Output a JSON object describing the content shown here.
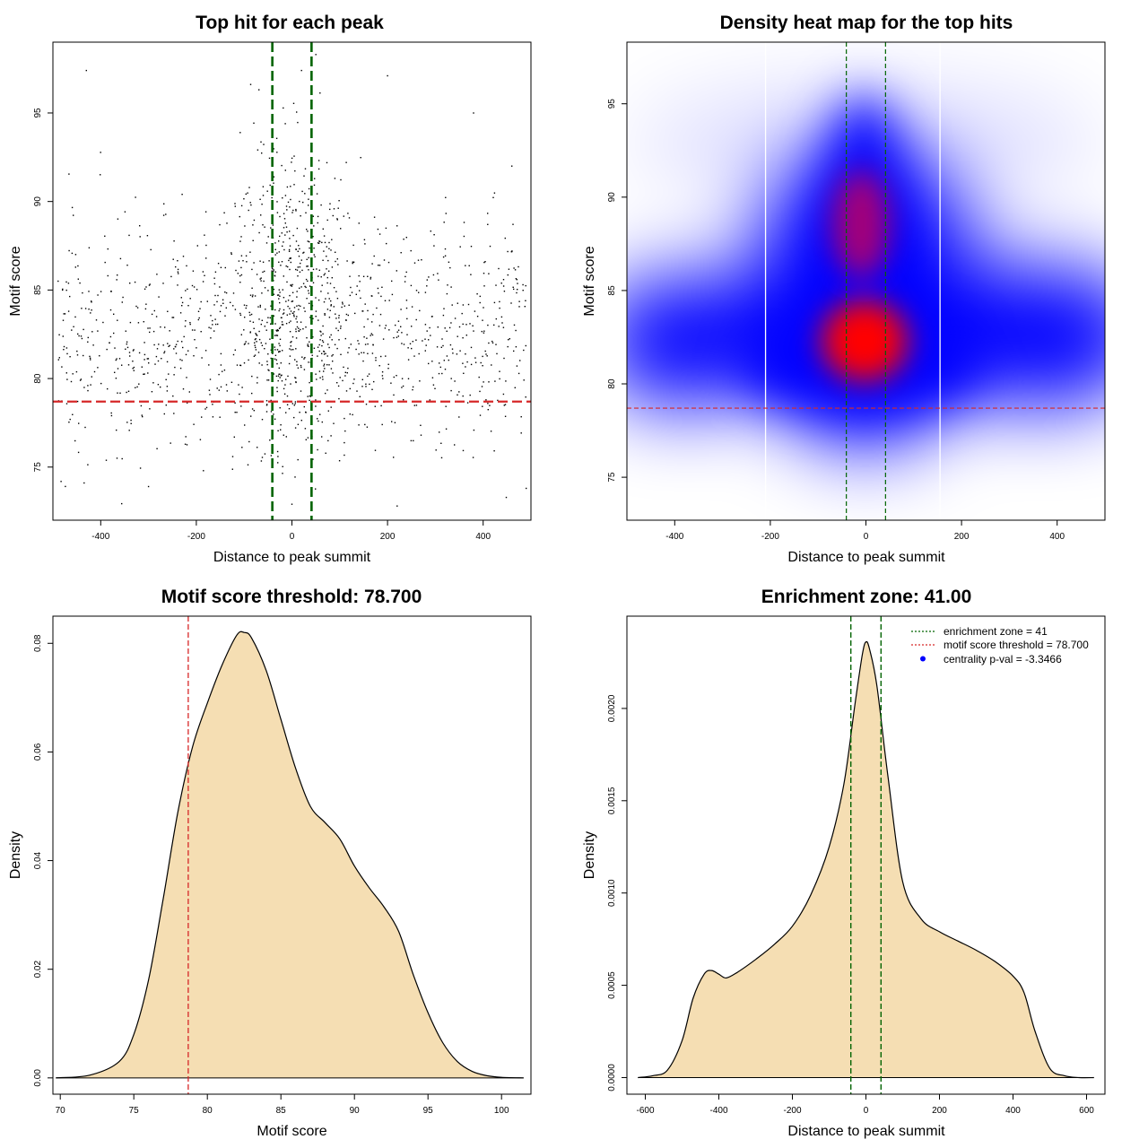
{
  "chart_data": [
    {
      "id": "scatter",
      "type": "scatter",
      "title": "Top hit for each peak",
      "xlabel": "Distance to peak summit",
      "ylabel": "Motif score",
      "xlim": [
        -500,
        500
      ],
      "ylim": [
        72,
        99
      ],
      "xticks": [
        -400,
        -200,
        0,
        200,
        400
      ],
      "yticks": [
        75,
        80,
        85,
        90,
        95
      ],
      "vlines": [
        -41,
        41
      ],
      "vline_color": "#006400",
      "hline": 78.7,
      "hline_color": "#d62728",
      "point_count": 1500,
      "point_color": "#000000",
      "points_sample": [
        [
          -430,
          97.4
        ],
        [
          -40,
          98.1
        ],
        [
          20,
          97.4
        ],
        [
          50,
          98.3
        ],
        [
          200,
          97.1
        ],
        [
          -470,
          81.4
        ],
        [
          0,
          72.9
        ],
        [
          220,
          72.8
        ],
        [
          490,
          73.8
        ],
        [
          -300,
          73.9
        ],
        [
          10,
          83.5
        ],
        [
          -20,
          90.2
        ],
        [
          380,
          95.0
        ],
        [
          460,
          92.0
        ]
      ]
    },
    {
      "id": "heatmap",
      "type": "heatmap",
      "title": "Density heat map for the top hits",
      "xlabel": "Distance to peak summit",
      "ylabel": "Motif score",
      "xlim": [
        -500,
        500
      ],
      "ylim": [
        72.7,
        98.3
      ],
      "xticks": [
        -400,
        -200,
        0,
        200,
        400
      ],
      "yticks": [
        75,
        80,
        85,
        90,
        95
      ],
      "vlines": [
        -41,
        41
      ],
      "vline_color": "#006400",
      "hline": 78.7,
      "hline_color": "#d62728",
      "white_vlines": [
        -210,
        155
      ],
      "colors": [
        "#ffffff",
        "#0000ff",
        "#ff0000"
      ],
      "hotspots": [
        {
          "x": 0,
          "y": 82.3,
          "level": "high"
        },
        {
          "x": -5,
          "y": 89.0,
          "level": "medium-high"
        },
        {
          "x": 0,
          "y": 94.0,
          "level": "medium"
        }
      ]
    },
    {
      "id": "score_density",
      "type": "area",
      "title": "Motif score threshold: 78.700",
      "xlabel": "Motif score",
      "ylabel": "Density",
      "xlim": [
        69.5,
        102
      ],
      "ylim": [
        -0.003,
        0.085
      ],
      "xticks": [
        70,
        75,
        80,
        85,
        90,
        95,
        100
      ],
      "ytick_labels": [
        "0.00",
        "0.02",
        "0.04",
        "0.06",
        "0.08"
      ],
      "yticks": [
        0,
        0.02,
        0.04,
        0.06,
        0.08
      ],
      "fill": "#f5deb3",
      "vline": 78.7,
      "vline_color": "#d62728",
      "x": [
        69.7,
        72,
        74,
        75,
        76,
        77,
        78,
        79,
        80,
        81,
        82,
        82.5,
        83,
        84,
        85,
        86,
        87,
        88,
        89,
        90,
        91,
        92,
        93,
        94,
        95,
        96,
        97,
        98,
        99,
        100,
        101.5
      ],
      "y": [
        0,
        0.0005,
        0.003,
        0.008,
        0.018,
        0.033,
        0.049,
        0.061,
        0.069,
        0.076,
        0.0815,
        0.082,
        0.081,
        0.075,
        0.066,
        0.057,
        0.05,
        0.047,
        0.044,
        0.039,
        0.035,
        0.0315,
        0.027,
        0.019,
        0.012,
        0.0065,
        0.003,
        0.0012,
        0.0004,
        0.0001,
        0
      ]
    },
    {
      "id": "distance_density",
      "type": "area",
      "title": "Enrichment zone: 41.00",
      "xlabel": "Distance to peak summit",
      "ylabel": "Density",
      "xlim": [
        -650,
        650
      ],
      "ylim": [
        -9e-05,
        0.0025
      ],
      "xticks": [
        -600,
        -400,
        -200,
        0,
        200,
        400,
        600
      ],
      "ytick_labels": [
        "0.0000",
        "0.0005",
        "0.0010",
        "0.0015",
        "0.0020"
      ],
      "yticks": [
        0,
        0.0005,
        0.001,
        0.0015,
        0.002
      ],
      "fill": "#f5deb3",
      "vlines": [
        -41,
        41
      ],
      "vline_color": "#006400",
      "x": [
        -620,
        -580,
        -540,
        -500,
        -470,
        -440,
        -420,
        -400,
        -380,
        -350,
        -300,
        -250,
        -200,
        -150,
        -100,
        -60,
        -30,
        -10,
        0,
        10,
        30,
        60,
        100,
        150,
        200,
        250,
        300,
        350,
        400,
        430,
        460,
        500,
        540,
        580,
        620
      ],
      "y": [
        0,
        1e-05,
        4e-05,
        0.0002,
        0.00043,
        0.00056,
        0.00058,
        0.00056,
        0.00054,
        0.00057,
        0.00064,
        0.00072,
        0.00082,
        0.00099,
        0.00125,
        0.00159,
        0.00202,
        0.00229,
        0.00236,
        0.00232,
        0.00212,
        0.00163,
        0.00106,
        0.00086,
        0.00079,
        0.00074,
        0.00069,
        0.00063,
        0.00055,
        0.00046,
        0.00025,
        5e-05,
        1e-05,
        0,
        0
      ],
      "legend": {
        "position": "top-right",
        "entries": [
          {
            "label": "enrichment zone = 41",
            "color": "#006400",
            "style": "dotted-line"
          },
          {
            "label": "motif score threshold = 78.700",
            "color": "#d62728",
            "style": "dotted-line"
          },
          {
            "label": "centrality p-val = -3.3466",
            "color": "#0000ff",
            "style": "point"
          }
        ]
      }
    }
  ]
}
